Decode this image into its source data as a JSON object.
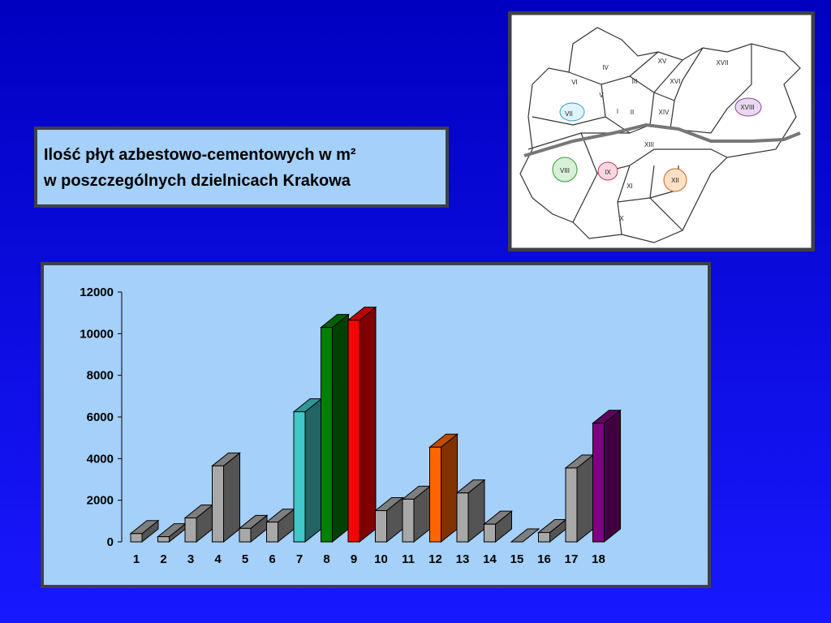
{
  "chart_data": {
    "type": "bar3d",
    "title_lines": [
      "Ilość płyt azbestowo-cementowych w m²",
      "w poszczególnych dzielnicach Krakowa"
    ],
    "categories": [
      "1",
      "2",
      "3",
      "4",
      "5",
      "6",
      "7",
      "8",
      "9",
      "10",
      "11",
      "12",
      "13",
      "14",
      "15",
      "16",
      "17",
      "18"
    ],
    "values": [
      400,
      250,
      1150,
      3650,
      650,
      950,
      6250,
      10300,
      10650,
      1500,
      2050,
      4550,
      2350,
      850,
      0,
      450,
      3550,
      5700
    ],
    "colors": [
      "#a8a8a8",
      "#a8a8a8",
      "#a8a8a8",
      "#a8a8a8",
      "#a8a8a8",
      "#a8a8a8",
      "#40c8c8",
      "#008000",
      "#ff0000",
      "#a8a8a8",
      "#a8a8a8",
      "#ff6600",
      "#a8a8a8",
      "#a8a8a8",
      "#a8a8a8",
      "#a8a8a8",
      "#a8a8a8",
      "#800080"
    ],
    "ylim": [
      0,
      12000
    ],
    "yticks": [
      0,
      2000,
      4000,
      6000,
      8000,
      10000,
      12000
    ]
  },
  "map": {
    "labels": [
      "IV",
      "VI",
      "V",
      "III",
      "XV",
      "XVI",
      "XVII",
      "VII",
      "I",
      "II",
      "XIV",
      "XVIII",
      "XIII",
      "VIII",
      "IX",
      "XII",
      "XI",
      "X"
    ]
  }
}
